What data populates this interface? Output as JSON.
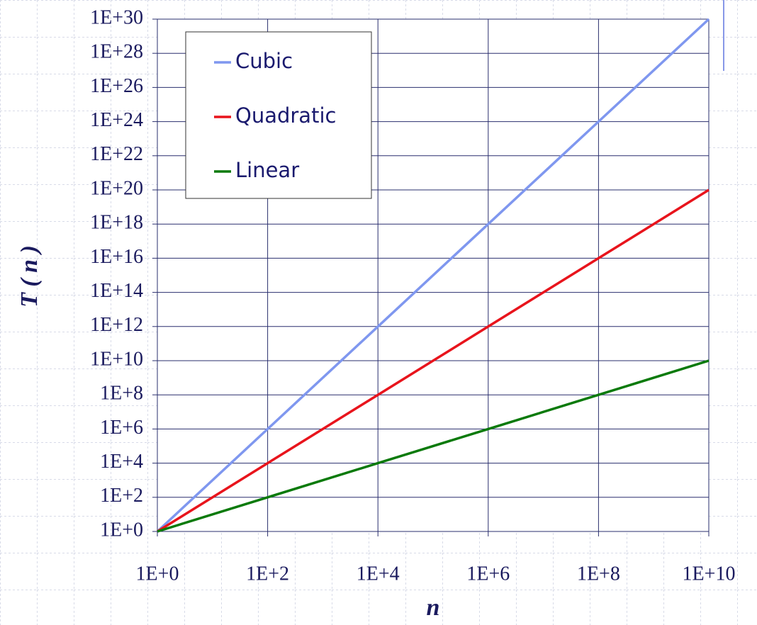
{
  "chart_data": {
    "type": "line",
    "xlabel": "n",
    "ylabel": "T ( n )",
    "xscale": "log",
    "yscale": "log",
    "grid": true,
    "legend": "upper left",
    "x": [
      1,
      100,
      10000,
      1000000,
      100000000,
      10000000000
    ],
    "series": [
      {
        "name": "Cubic",
        "color": "#7f97ef",
        "values": [
          1,
          1000000.0,
          1000000000000.0,
          1e+18,
          1e+24,
          1e+30
        ]
      },
      {
        "name": "Quadratic",
        "color": "#e8141c",
        "values": [
          1,
          10000.0,
          100000000.0,
          1000000000000.0,
          1e+16,
          1e+20
        ]
      },
      {
        "name": "Linear",
        "color": "#0a7a0a",
        "values": [
          1,
          100,
          10000,
          1000000,
          100000000,
          10000000000
        ]
      }
    ],
    "xlim": [
      1,
      10000000000
    ],
    "xticks": [
      {
        "value": 1,
        "label": "1E+0"
      },
      {
        "value": 100,
        "label": "1E+2"
      },
      {
        "value": 10000,
        "label": "1E+4"
      },
      {
        "value": 1000000,
        "label": "1E+6"
      },
      {
        "value": 100000000,
        "label": "1E+8"
      },
      {
        "value": 10000000000,
        "label": "1E+10"
      }
    ],
    "ylim": [
      1,
      1e+30
    ],
    "yticks": [
      {
        "value": 1,
        "label": "1E+0"
      },
      {
        "value": 100,
        "label": "1E+2"
      },
      {
        "value": 10000,
        "label": "1E+4"
      },
      {
        "value": 1000000,
        "label": "1E+6"
      },
      {
        "value": 100000000,
        "label": "1E+8"
      },
      {
        "value": 10000000000,
        "label": "1E+10"
      },
      {
        "value": 1000000000000.0,
        "label": "1E+12"
      },
      {
        "value": 100000000000000.0,
        "label": "1E+14"
      },
      {
        "value": 1e+16,
        "label": "1E+16"
      },
      {
        "value": 1e+18,
        "label": "1E+18"
      },
      {
        "value": 1e+20,
        "label": "1E+20"
      },
      {
        "value": 1e+22,
        "label": "1E+22"
      },
      {
        "value": 1e+24,
        "label": "1E+24"
      },
      {
        "value": 1e+26,
        "label": "1E+26"
      },
      {
        "value": 1e+28,
        "label": "1E+28"
      },
      {
        "value": 1e+30,
        "label": "1E+30"
      }
    ]
  }
}
